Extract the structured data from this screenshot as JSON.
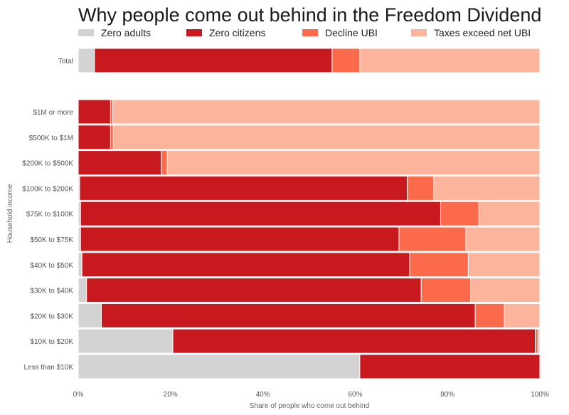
{
  "chart_data": {
    "type": "bar",
    "orientation": "horizontal",
    "stacked": true,
    "percent_stacked": true,
    "title": "Why people come out behind in the Freedom Dividend",
    "xlabel": "Share of people who come out behind",
    "ylabel": "Household income",
    "xlim": [
      0,
      100
    ],
    "xticks": [
      "0%",
      "20%",
      "40%",
      "60%",
      "80%",
      "100%"
    ],
    "legend_position": "top",
    "grid": false,
    "categories": [
      "Total",
      "$1M or more",
      "$500K to $1M",
      "$200K to $500K",
      "$100K to $200K",
      "$75K to $100K",
      "$50K to $75K",
      "$40K to $50K",
      "$30K to $40K",
      "$20K to $30K",
      "$10K to $20K",
      "Less than $10K"
    ],
    "series": [
      {
        "name": "Zero adults",
        "color": "#d3d3d3",
        "values": [
          3.5,
          0,
          0,
          0,
          0.3,
          0.5,
          0.5,
          0.8,
          1.8,
          5.0,
          20.5,
          61.0
        ]
      },
      {
        "name": "Zero citizens",
        "color": "#c8191e",
        "values": [
          51.5,
          7.0,
          7.0,
          18.0,
          71.0,
          78.0,
          69.0,
          71.0,
          72.5,
          81.0,
          78.5,
          39.0
        ]
      },
      {
        "name": "Decline UBI",
        "color": "#fb6a4a",
        "values": [
          6.0,
          0.5,
          0.6,
          1.3,
          5.7,
          8.3,
          14.5,
          12.7,
          10.7,
          6.3,
          0.6,
          0
        ]
      },
      {
        "name": "Taxes exceed net UBI",
        "color": "#fcb49c",
        "values": [
          39.0,
          92.5,
          92.4,
          80.7,
          23.0,
          13.2,
          16.0,
          15.5,
          15.0,
          7.7,
          0.4,
          0
        ]
      }
    ]
  }
}
